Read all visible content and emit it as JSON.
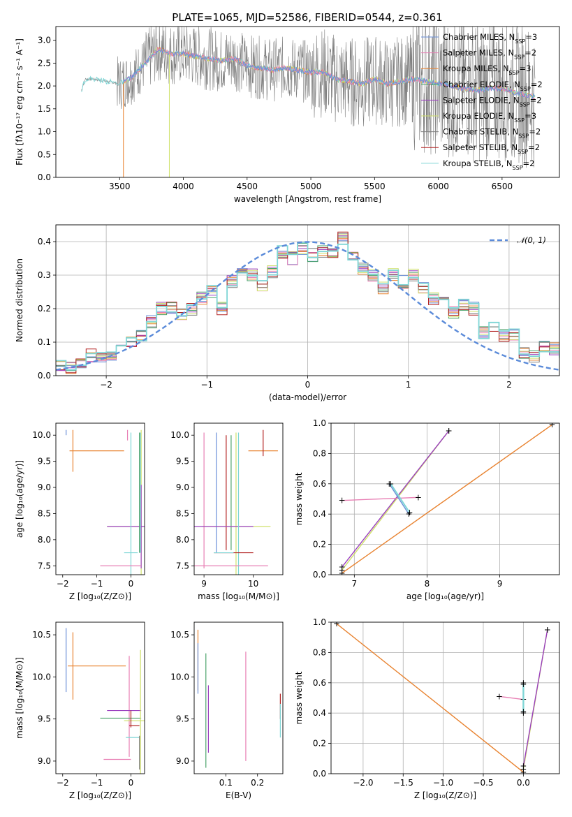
{
  "figure": {
    "title": "PLATE=1065, MJD=52586, FIBERID=0544, z=0.361"
  },
  "colors": {
    "chabrier_miles": "#6a8fd8",
    "salpeter_miles": "#e87fb4",
    "kroupa_miles": "#e8822f",
    "chabrier_elodie": "#4aa26a",
    "salpeter_elodie": "#9a3fbf",
    "kroupa_elodie": "#cfe06a",
    "chabrier_stelib": "#7f7f7f",
    "salpeter_stelib": "#b22222",
    "kroupa_stelib": "#7fd6d6",
    "gauss": "#5b8bd9"
  },
  "chart_data": [
    {
      "id": "spectrum",
      "type": "line",
      "xlabel": "wavelength [Angstrom, rest frame]",
      "ylabel": "Flux [fλ10⁻¹⁷ erg cm⁻² s⁻¹ A⁻¹]",
      "xlim": [
        3000,
        6950
      ],
      "ylim": [
        0,
        3.3
      ],
      "xticks": [
        3500,
        4000,
        4500,
        5000,
        5500,
        6000,
        6500
      ],
      "yticks": [
        0.0,
        0.5,
        1.0,
        1.5,
        2.0,
        2.5,
        3.0
      ],
      "legend_position": "top-right",
      "legend": [
        {
          "label": "Chabrier MILES, N",
          "sub": "SSP",
          "suffix": "=3",
          "key": "chabrier_miles"
        },
        {
          "label": "Salpeter MILES, N",
          "sub": "SSP",
          "suffix": "=2",
          "key": "salpeter_miles"
        },
        {
          "label": "Kroupa MILES, N",
          "sub": "SSP",
          "suffix": "=3",
          "key": "kroupa_miles"
        },
        {
          "label": "Chabrier ELODIE, N",
          "sub": "SSP",
          "suffix": "=2",
          "key": "chabrier_elodie"
        },
        {
          "label": "Salpeter ELODIE, N",
          "sub": "SSP",
          "suffix": "=2",
          "key": "salpeter_elodie"
        },
        {
          "label": "Kroupa ELODIE, N",
          "sub": "SSP",
          "suffix": "=3",
          "key": "kroupa_elodie"
        },
        {
          "label": "Chabrier STELIB, N",
          "sub": "SSP",
          "suffix": "=2",
          "key": "chabrier_stelib"
        },
        {
          "label": "Salpeter STELIB, N",
          "sub": "SSP",
          "suffix": "=2",
          "key": "salpeter_stelib"
        },
        {
          "label": "Kroupa STELIB, N",
          "sub": "SSP",
          "suffix": "=2",
          "key": "kroupa_stelib"
        }
      ],
      "continuum": [
        [
          3200,
          1.9
        ],
        [
          3230,
          2.15
        ],
        [
          3300,
          2.15
        ],
        [
          3400,
          2.1
        ],
        [
          3500,
          2.05
        ],
        [
          3600,
          2.2
        ],
        [
          3700,
          2.5
        ],
        [
          3800,
          2.8
        ],
        [
          3900,
          2.7
        ],
        [
          4000,
          2.7
        ],
        [
          4100,
          2.65
        ],
        [
          4200,
          2.6
        ],
        [
          4300,
          2.55
        ],
        [
          4400,
          2.6
        ],
        [
          4500,
          2.45
        ],
        [
          4600,
          2.4
        ],
        [
          4700,
          2.35
        ],
        [
          4800,
          2.4
        ],
        [
          4900,
          2.35
        ],
        [
          5000,
          2.3
        ],
        [
          5100,
          2.3
        ],
        [
          5200,
          2.15
        ],
        [
          5300,
          2.1
        ],
        [
          5400,
          2.05
        ],
        [
          5500,
          2.15
        ],
        [
          5600,
          2.05
        ],
        [
          5700,
          2.1
        ],
        [
          5800,
          2.15
        ],
        [
          5900,
          2.1
        ],
        [
          6000,
          2.05
        ],
        [
          6100,
          2.0
        ],
        [
          6200,
          1.95
        ],
        [
          6300,
          1.9
        ],
        [
          6400,
          1.95
        ],
        [
          6500,
          1.95
        ],
        [
          6600,
          1.85
        ],
        [
          6700,
          1.8
        ],
        [
          6760,
          1.75
        ]
      ]
    },
    {
      "id": "residuals",
      "type": "line",
      "xlabel": "(data-model)/error",
      "ylabel": "Normed distribution",
      "xlim": [
        -2.5,
        2.5
      ],
      "ylim": [
        0,
        0.45
      ],
      "xticks": [
        -2,
        -1,
        0,
        1,
        2
      ],
      "yticks": [
        0.0,
        0.1,
        0.2,
        0.3,
        0.4
      ],
      "legend_position": "top-right",
      "gauss_label": "𝒩(0, 1)",
      "bin_width": 0.1,
      "hist": [
        0.03,
        0.025,
        0.035,
        0.06,
        0.055,
        0.065,
        0.08,
        0.1,
        0.12,
        0.16,
        0.2,
        0.2,
        0.18,
        0.2,
        0.23,
        0.25,
        0.2,
        0.28,
        0.31,
        0.3,
        0.27,
        0.31,
        0.37,
        0.35,
        0.38,
        0.36,
        0.37,
        0.36,
        0.41,
        0.35,
        0.32,
        0.3,
        0.26,
        0.3,
        0.28,
        0.3,
        0.26,
        0.23,
        0.24,
        0.19,
        0.21,
        0.2,
        0.13,
        0.15,
        0.12,
        0.12,
        0.07,
        0.06,
        0.09,
        0.08,
        0.07,
        0.06,
        0.08,
        0.05,
        0.04,
        0.04,
        0.035,
        0.03
      ]
    },
    {
      "id": "z-age",
      "type": "scatter",
      "xlabel": "Z [log₁₀(Z/Z⊙)]",
      "ylabel": "age  [log₁₀(age/yr)]",
      "xlim": [
        -2.2,
        0.4
      ],
      "ylim": [
        7.33,
        10.23
      ],
      "xticks": [
        -2,
        -1,
        0
      ],
      "yticks": [
        7.5,
        8.0,
        8.5,
        9.0,
        9.5,
        10.0
      ],
      "points": [
        {
          "key": "chabrier_miles",
          "x": -1.9,
          "y": 10.05,
          "xerr": 0.0,
          "yerr": 0.05
        },
        {
          "key": "kroupa_miles",
          "x": -1.7,
          "y": 9.7,
          "xerr": 0.0,
          "yerr": 0.4
        },
        {
          "key": "kroupa_miles",
          "x": -1.0,
          "y": 9.7,
          "xerr": 0.8,
          "yerr": 0.0
        },
        {
          "key": "salpeter_miles",
          "x": -0.1,
          "y": 10.0,
          "xerr": 0.0,
          "yerr": 0.1
        },
        {
          "key": "kroupa_elodie",
          "x": 0.3,
          "y": 8.25,
          "xerr": 1.0,
          "yerr": 1.85
        },
        {
          "key": "salpeter_elodie",
          "x": 0.3,
          "y": 8.25,
          "xerr": 1.0,
          "yerr": 0.8
        },
        {
          "key": "chabrier_stelib",
          "x": 0.3,
          "y": 8.25,
          "xerr": 0.0,
          "yerr": 0.0
        },
        {
          "key": "kroupa_stelib",
          "x": 0.0,
          "y": 7.75,
          "xerr": 0.2,
          "yerr": 2.3
        },
        {
          "key": "salpeter_miles",
          "x": -0.3,
          "y": 7.5,
          "xerr": 0.6,
          "yerr": 0.0
        }
      ]
    },
    {
      "id": "mass-age",
      "type": "scatter",
      "xlabel": "mass [log₁₀(M/M⊙)]",
      "ylabel": "",
      "xlim": [
        8.8,
        10.6
      ],
      "ylim": [
        7.33,
        10.23
      ],
      "xticks": [
        9,
        10
      ],
      "yticks": [
        7.5,
        8.0,
        8.5,
        9.0,
        9.5,
        10.0
      ]
    },
    {
      "id": "age-weight",
      "type": "line",
      "xlabel": "age  [log₁₀(age/yr)]",
      "ylabel": "mass weight",
      "xlim": [
        6.68,
        9.82
      ],
      "ylim": [
        0,
        1
      ],
      "xticks": [
        7,
        8,
        9
      ],
      "yticks": [
        0.0,
        0.2,
        0.4,
        0.6,
        0.8,
        1.0
      ],
      "series": [
        {
          "key": "kroupa_miles",
          "points": [
            [
              6.83,
              0.01
            ],
            [
              9.72,
              0.99
            ]
          ]
        },
        {
          "key": "kroupa_elodie",
          "points": [
            [
              6.83,
              0.03
            ],
            [
              8.3,
              0.95
            ]
          ]
        },
        {
          "key": "salpeter_elodie",
          "points": [
            [
              6.83,
              0.05
            ],
            [
              8.3,
              0.95
            ]
          ]
        },
        {
          "key": "salpeter_miles",
          "points": [
            [
              6.83,
              0.49
            ],
            [
              7.88,
              0.51
            ]
          ]
        },
        {
          "key": "chabrier_miles",
          "points": [
            [
              7.48,
              0.6
            ],
            [
              7.75,
              0.4
            ]
          ]
        },
        {
          "key": "kroupa_stelib",
          "points": [
            [
              7.5,
              0.6
            ],
            [
              7.76,
              0.41
            ]
          ]
        }
      ]
    },
    {
      "id": "z-mass",
      "type": "scatter",
      "xlabel": "Z [log₁₀(Z/Z⊙)]",
      "ylabel": "mass [log₁₀(M/M⊙)]",
      "xlim": [
        -2.2,
        0.4
      ],
      "ylim": [
        8.85,
        10.65
      ],
      "xticks": [
        -2,
        -1,
        0
      ],
      "yticks": [
        9.0,
        9.5,
        10.0,
        10.5
      ]
    },
    {
      "id": "ebv-mass",
      "type": "scatter",
      "xlabel": "E(B-V)",
      "ylabel": "",
      "xlim": [
        0.0,
        0.28
      ],
      "ylim": [
        8.85,
        10.65
      ],
      "xticks": [
        0.1,
        0.2
      ],
      "yticks": [
        9.0,
        9.5,
        10.0,
        10.5
      ]
    },
    {
      "id": "z-weight",
      "type": "line",
      "xlabel": "Z [log₁₀(Z/Z⊙)]",
      "ylabel": "mass weight",
      "xlim": [
        -2.4,
        0.45
      ],
      "ylim": [
        0,
        1
      ],
      "xticks": [
        -2.0,
        -1.5,
        -1.0,
        -0.5,
        0.0
      ],
      "yticks": [
        0.0,
        0.2,
        0.4,
        0.6,
        0.8,
        1.0
      ],
      "series": [
        {
          "key": "kroupa_miles",
          "points": [
            [
              -2.33,
              0.99
            ],
            [
              0.0,
              0.01
            ]
          ]
        },
        {
          "key": "kroupa_elodie",
          "points": [
            [
              0.0,
              0.03
            ],
            [
              0.3,
              0.95
            ]
          ]
        },
        {
          "key": "salpeter_elodie",
          "points": [
            [
              0.0,
              0.05
            ],
            [
              0.3,
              0.95
            ]
          ]
        },
        {
          "key": "salpeter_miles",
          "points": [
            [
              -0.3,
              0.51
            ],
            [
              0.0,
              0.49
            ]
          ]
        },
        {
          "key": "chabrier_miles",
          "points": [
            [
              0.0,
              0.6
            ],
            [
              0.0,
              0.4
            ]
          ]
        },
        {
          "key": "kroupa_stelib",
          "points": [
            [
              0.0,
              0.59
            ],
            [
              0.0,
              0.41
            ]
          ]
        }
      ]
    }
  ]
}
